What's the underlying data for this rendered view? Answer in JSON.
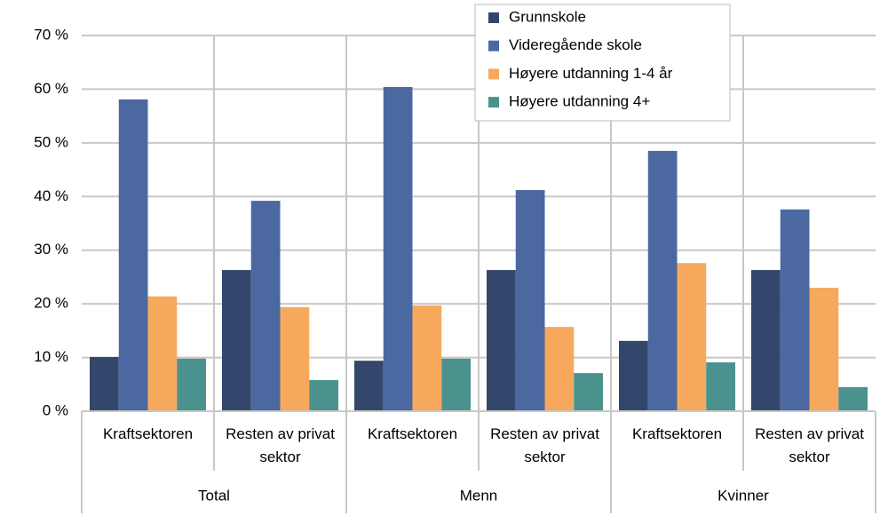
{
  "chart_data": {
    "type": "bar",
    "categories": [
      "Kraftsektoren",
      "Resten av privat sektor",
      "Kraftsektoren",
      "Resten av privat sektor",
      "Kraftsektoren",
      "Resten av privat sektor"
    ],
    "group_labels": [
      "Total",
      "Menn",
      "Kvinner"
    ],
    "series": [
      {
        "name": "Grunnskole",
        "color": "#33466b",
        "values": [
          10.1,
          26.3,
          9.4,
          26.3,
          13.1,
          26.3
        ]
      },
      {
        "name": "Videregående skole",
        "color": "#4b69a0",
        "values": [
          58.1,
          39.2,
          60.4,
          41.2,
          48.5,
          37.6
        ]
      },
      {
        "name": "Høyere utdanning 1-4 år",
        "color": "#f6a95c",
        "values": [
          21.4,
          19.4,
          19.7,
          15.7,
          27.6,
          23.0
        ]
      },
      {
        "name": "Høyere utdanning 4+",
        "color": "#4b928e",
        "values": [
          9.8,
          5.8,
          9.8,
          7.1,
          9.1,
          4.5
        ]
      }
    ],
    "ylim": [
      0,
      70
    ],
    "yticks": [
      {
        "value": 0,
        "label": "0 %"
      },
      {
        "value": 10,
        "label": "10 %"
      },
      {
        "value": 20,
        "label": "20 %"
      },
      {
        "value": 30,
        "label": "30 %"
      },
      {
        "value": 40,
        "label": "40 %"
      },
      {
        "value": 50,
        "label": "50 %"
      },
      {
        "value": 60,
        "label": "60 %"
      },
      {
        "value": 70,
        "label": "70 %"
      }
    ],
    "grid": true,
    "legend": "top-right"
  }
}
